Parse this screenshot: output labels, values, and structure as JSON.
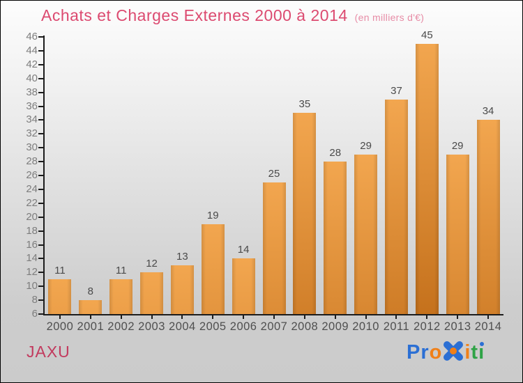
{
  "header": {
    "title": "Achats et Charges Externes 2000 à 2014",
    "subtitle": "(en milliers d'€)"
  },
  "footer": {
    "company": "JAXU"
  },
  "logo": {
    "name": "Proxiti",
    "letters": [
      {
        "ch": "P",
        "color": "#2B6FD4"
      },
      {
        "ch": "r",
        "color": "#2B6FD4"
      },
      {
        "ch": "o",
        "color": "#F08019"
      },
      {
        "ch": "x",
        "color": "#2B6FD4",
        "icon": "x-flower-icon",
        "accent": "#F08019"
      },
      {
        "ch": "i",
        "color": "#F08019"
      },
      {
        "ch": "t",
        "color": "#2FA347"
      },
      {
        "ch": "i",
        "color": "#2FA347",
        "dot_color": "#2B6FD4"
      }
    ]
  },
  "colors": {
    "title": "#DC4A70",
    "subtitle": "#E78CA6",
    "company": "#C23A5E",
    "axis": "#1C1C1C",
    "bar_top": "#F2A64F",
    "bar_bottom": "#C4701B",
    "bar_edge_shade": "rgba(0,0,0,0.12)"
  },
  "chart_data": {
    "type": "bar",
    "title": "Achats et Charges Externes 2000 à 2014",
    "subtitle": "(en milliers d'€)",
    "categories": [
      "2000",
      "2001",
      "2002",
      "2003",
      "2004",
      "2005",
      "2006",
      "2007",
      "2008",
      "2009",
      "2010",
      "2011",
      "2012",
      "2013",
      "2014"
    ],
    "values": [
      11,
      8,
      11,
      12,
      13,
      19,
      14,
      25,
      35,
      28,
      29,
      37,
      45,
      29,
      34
    ],
    "xlabel": "",
    "ylabel": "",
    "ylim": [
      6,
      46
    ],
    "ytick_step": 2,
    "grid": false,
    "legend": "none",
    "bar_labels_shown": true
  }
}
